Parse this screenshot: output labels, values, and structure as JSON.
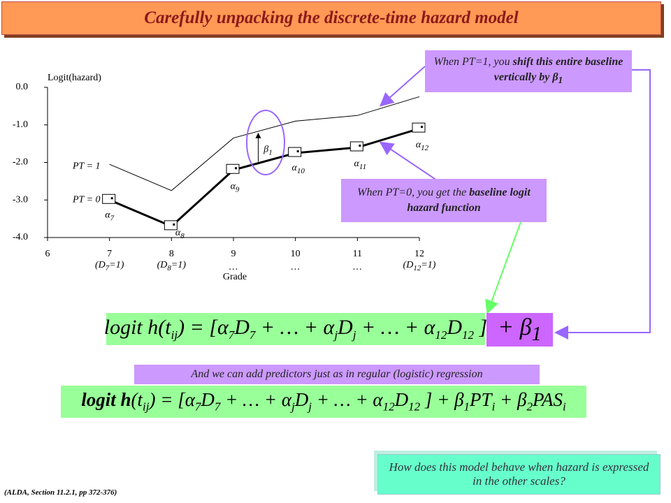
{
  "header": {
    "title": "Carefully unpacking the discrete-time hazard model"
  },
  "chart_data": {
    "type": "line",
    "y_axis_label": "Logit(hazard)",
    "x_axis_label": "Grade",
    "x": [
      7,
      8,
      9,
      10,
      11,
      12
    ],
    "xlim": [
      6,
      12
    ],
    "xticks": [
      6,
      7,
      8,
      9,
      10,
      11,
      12
    ],
    "x_notes": [
      {
        "t": "(D",
        "sub": "7",
        "after": "=1)"
      },
      {
        "t": "(D",
        "sub": "8",
        "after": "=1)"
      },
      {
        "t": "…"
      },
      {
        "t": "…"
      },
      {
        "t": "…"
      },
      {
        "t": "(D",
        "sub": "12",
        "after": "=1)"
      }
    ],
    "ylim": [
      -4,
      0
    ],
    "yticks": [
      {
        "value": 0,
        "label": "0.0"
      },
      {
        "value": -1,
        "label": "-1.0"
      },
      {
        "value": -2,
        "label": "-2.0"
      },
      {
        "value": -3,
        "label": "-3.0"
      },
      {
        "value": -4,
        "label": "-4.0"
      }
    ],
    "series": [
      {
        "name": "PT = 1",
        "color": "#000000",
        "values": [
          -2.05,
          -2.75,
          -1.35,
          -0.9,
          -0.75,
          -0.25
        ]
      },
      {
        "name": "PT = 0",
        "color": "#000000",
        "values": [
          -3.0,
          -3.7,
          -2.2,
          -1.75,
          -1.6,
          -1.1
        ]
      }
    ],
    "point_labels": [
      {
        "t": "α",
        "sub": "7"
      },
      {
        "t": "α",
        "sub": "8"
      },
      {
        "t": "α",
        "sub": "9"
      },
      {
        "t": "α",
        "sub": "10"
      },
      {
        "t": "α",
        "sub": "11"
      },
      {
        "t": "α",
        "sub": "12"
      }
    ],
    "shift_label": {
      "t": "β",
      "sub": "1"
    }
  },
  "callouts": [
    [
      {
        "t": "When PT=1, you "
      },
      {
        "t": "shift this entire baseline vertically by β",
        "b": true,
        "sub": "1"
      }
    ],
    [
      {
        "t": "When PT=0, you get the "
      },
      {
        "t": "baseline logit hazard function",
        "b": true
      }
    ]
  ],
  "equation1": [
    {
      "t": "logit h(t",
      "sub": "ij"
    },
    {
      "t": ") = [α",
      "sub": "7"
    },
    {
      "t": "D",
      "sub": "7"
    },
    {
      "t": " + … + α",
      "sub": "j"
    },
    {
      "t": "D",
      "sub": "j"
    },
    {
      "t": " + … + α",
      "sub": "12"
    },
    {
      "t": "D",
      "sub": "12"
    },
    {
      "t": " ]"
    }
  ],
  "equation1_term": [
    {
      "t": "+  β",
      "sub": "1"
    }
  ],
  "predictors_note": "And we can add predictors just as in regular (logistic) regression",
  "equation2": [
    {
      "t": "logit h",
      "b": true
    },
    {
      "t": "(t",
      "sub": "ij"
    },
    {
      "t": ") = [α",
      "sub": "7"
    },
    {
      "t": "D",
      "sub": "7"
    },
    {
      "t": " + … + α",
      "sub": "j"
    },
    {
      "t": "D",
      "sub": "j"
    },
    {
      "t": " + … + α",
      "sub": "12"
    },
    {
      "t": "D",
      "sub": "12"
    },
    {
      "t": " ] + β",
      "sub": "1"
    },
    {
      "t": "PT",
      "sub": "i"
    },
    {
      "t": " + β",
      "sub": "2"
    },
    {
      "t": "PAS",
      "sub": "i"
    }
  ],
  "question": "How does this model behave when hazard is expressed in the other scales?",
  "footnote": "(ALDA, Section 11.2.1, pp 372-376)"
}
